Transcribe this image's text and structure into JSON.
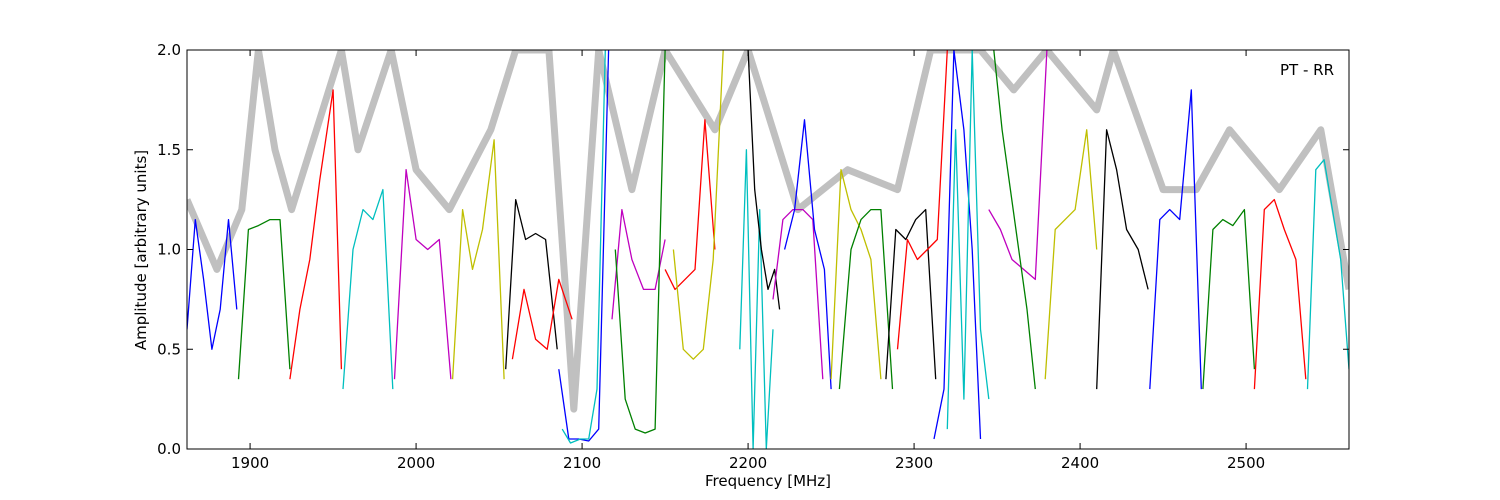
{
  "chart_data": {
    "type": "line",
    "annotation": "PT - RR",
    "xlabel": "Frequency [MHz]",
    "ylabel": "Amplitude [arbitrary units]",
    "xlim": [
      1862,
      2562
    ],
    "ylim": [
      0,
      2
    ],
    "xticks": [
      1900,
      2000,
      2100,
      2200,
      2300,
      2400,
      2500
    ],
    "yticks": [
      {
        "value": 0,
        "label": "0.0"
      },
      0.5,
      {
        "value": 1,
        "label": "1.0"
      },
      1.5,
      {
        "value": 2,
        "label": "2.0"
      }
    ],
    "series": [
      {
        "color": "#c0c0c0",
        "x": [
          1862,
          1880,
          1895,
          1905,
          1915,
          1925,
          1940,
          1955,
          1965,
          1985,
          2000,
          2020,
          2045,
          2060,
          2080,
          2095,
          2110,
          2130,
          2150,
          2180,
          2200,
          2230,
          2260,
          2290,
          2310,
          2340,
          2360,
          2380,
          2410,
          2420,
          2450,
          2470,
          2490,
          2520,
          2545,
          2562
        ],
        "values": [
          1.25,
          0.9,
          1.2,
          2.0,
          1.5,
          1.2,
          1.6,
          2.0,
          1.5,
          2.0,
          1.4,
          1.2,
          1.6,
          2.0,
          2.0,
          0.2,
          2.0,
          1.3,
          2.0,
          1.6,
          2.0,
          1.2,
          1.4,
          1.3,
          2.0,
          2.0,
          1.8,
          2.0,
          1.7,
          2.0,
          1.3,
          1.3,
          1.6,
          1.3,
          1.6,
          0.8
        ]
      },
      {
        "color": "#0000ff",
        "x": [
          1862,
          1867,
          1872,
          1877,
          1882,
          1887,
          1892
        ],
        "values": [
          0.6,
          1.15,
          0.85,
          0.5,
          0.7,
          1.15,
          0.7
        ]
      },
      {
        "color": "#008000",
        "x": [
          1893,
          1899,
          1905,
          1912,
          1918,
          1924
        ],
        "values": [
          0.35,
          1.1,
          1.12,
          1.15,
          1.15,
          0.4
        ]
      },
      {
        "color": "#ff0000",
        "x": [
          1924,
          1930,
          1936,
          1942,
          1950,
          1955
        ],
        "values": [
          0.35,
          0.7,
          0.95,
          1.35,
          1.8,
          0.4
        ]
      },
      {
        "color": "#00bfbf",
        "x": [
          1956,
          1962,
          1968,
          1974,
          1980,
          1986
        ],
        "values": [
          0.3,
          1.0,
          1.2,
          1.15,
          1.3,
          0.3
        ]
      },
      {
        "color": "#bf00bf",
        "x": [
          1987,
          1994,
          2000,
          2007,
          2014,
          2021
        ],
        "values": [
          0.35,
          1.4,
          1.05,
          1.0,
          1.05,
          0.35
        ]
      },
      {
        "color": "#bfbf00",
        "x": [
          2022,
          2028,
          2034,
          2040,
          2047,
          2053
        ],
        "values": [
          0.35,
          1.2,
          0.9,
          1.1,
          1.55,
          0.35
        ]
      },
      {
        "color": "#000000",
        "x": [
          2054,
          2060,
          2066,
          2072,
          2078,
          2085
        ],
        "values": [
          0.4,
          1.25,
          1.05,
          1.08,
          1.05,
          0.5
        ]
      },
      {
        "color": "#ff0000",
        "x": [
          2058,
          2065,
          2072,
          2079,
          2086,
          2094
        ],
        "values": [
          0.45,
          0.8,
          0.55,
          0.5,
          0.85,
          0.65
        ]
      },
      {
        "color": "#0000ff",
        "x": [
          2086,
          2092,
          2098,
          2104,
          2110,
          2116
        ],
        "values": [
          0.4,
          0.05,
          0.05,
          0.04,
          0.1,
          2.0
        ]
      },
      {
        "color": "#00bfbf",
        "x": [
          2088,
          2093,
          2099,
          2104,
          2109,
          2114
        ],
        "values": [
          0.1,
          0.03,
          0.05,
          0.05,
          0.3,
          2.0
        ]
      },
      {
        "color": "#bf00bf",
        "x": [
          2118,
          2124,
          2130,
          2137,
          2144,
          2150
        ],
        "values": [
          0.65,
          1.2,
          0.95,
          0.8,
          0.8,
          1.05
        ]
      },
      {
        "color": "#008000",
        "x": [
          2120,
          2126,
          2132,
          2138,
          2144,
          2150
        ],
        "values": [
          1.0,
          0.25,
          0.1,
          0.08,
          0.1,
          2.0
        ]
      },
      {
        "color": "#ff0000",
        "x": [
          2150,
          2156,
          2162,
          2168,
          2174,
          2180
        ],
        "values": [
          0.9,
          0.8,
          0.85,
          0.9,
          1.65,
          1.0
        ]
      },
      {
        "color": "#bfbf00",
        "x": [
          2155,
          2161,
          2167,
          2173,
          2179,
          2185
        ],
        "values": [
          1.0,
          0.5,
          0.45,
          0.5,
          0.95,
          2.0
        ]
      },
      {
        "color": "#00bfbf",
        "x": [
          2195,
          2199,
          2203,
          2207,
          2211,
          2215
        ],
        "values": [
          0.5,
          1.5,
          0.0,
          1.2,
          0.0,
          0.6
        ]
      },
      {
        "color": "#000000",
        "x": [
          2200,
          2204,
          2208,
          2212,
          2216,
          2219
        ],
        "values": [
          2.0,
          1.3,
          1.0,
          0.8,
          0.9,
          0.7
        ]
      },
      {
        "color": "#bf00bf",
        "x": [
          2215,
          2221,
          2227,
          2233,
          2239,
          2245
        ],
        "values": [
          0.75,
          1.15,
          1.2,
          1.2,
          1.15,
          0.35
        ]
      },
      {
        "color": "#0000ff",
        "x": [
          2222,
          2228,
          2234,
          2240,
          2246,
          2250
        ],
        "values": [
          1.0,
          1.2,
          1.65,
          1.1,
          0.9,
          0.3
        ]
      },
      {
        "color": "#bfbf00",
        "x": [
          2250,
          2256,
          2262,
          2268,
          2274,
          2280
        ],
        "values": [
          0.35,
          1.4,
          1.2,
          1.1,
          0.95,
          0.35
        ]
      },
      {
        "color": "#008000",
        "x": [
          2255,
          2262,
          2268,
          2274,
          2280,
          2287
        ],
        "values": [
          0.3,
          1.0,
          1.15,
          1.2,
          1.2,
          0.3
        ]
      },
      {
        "color": "#000000",
        "x": [
          2283,
          2289,
          2295,
          2301,
          2307,
          2313
        ],
        "values": [
          0.35,
          1.1,
          1.05,
          1.15,
          1.2,
          0.35
        ]
      },
      {
        "color": "#ff0000",
        "x": [
          2290,
          2296,
          2302,
          2308,
          2314,
          2320
        ],
        "values": [
          0.5,
          1.05,
          0.95,
          1.0,
          1.05,
          2.0
        ]
      },
      {
        "color": "#0000ff",
        "x": [
          2312,
          2318,
          2324,
          2330,
          2335,
          2340
        ],
        "values": [
          0.05,
          0.3,
          2.0,
          1.6,
          1.0,
          0.05
        ]
      },
      {
        "color": "#00bfbf",
        "x": [
          2320,
          2325,
          2330,
          2335,
          2340,
          2345
        ],
        "values": [
          0.1,
          1.6,
          0.25,
          2.0,
          0.6,
          0.25
        ]
      },
      {
        "color": "#bf00bf",
        "x": [
          2345,
          2352,
          2359,
          2366,
          2373,
          2380
        ],
        "values": [
          1.2,
          1.1,
          0.95,
          0.9,
          0.85,
          2.0
        ]
      },
      {
        "color": "#008000",
        "x": [
          2348,
          2353,
          2358,
          2363,
          2368,
          2373
        ],
        "values": [
          2.0,
          1.6,
          1.3,
          1.0,
          0.7,
          0.3
        ]
      },
      {
        "color": "#bfbf00",
        "x": [
          2379,
          2385,
          2391,
          2397,
          2404,
          2410
        ],
        "values": [
          0.35,
          1.1,
          1.15,
          1.2,
          1.6,
          1.0
        ]
      },
      {
        "color": "#000000",
        "x": [
          2410,
          2416,
          2422,
          2428,
          2435,
          2441
        ],
        "values": [
          0.3,
          1.6,
          1.4,
          1.1,
          1.0,
          0.8
        ]
      },
      {
        "color": "#0000ff",
        "x": [
          2442,
          2448,
          2454,
          2460,
          2467,
          2473
        ],
        "values": [
          0.3,
          1.15,
          1.2,
          1.15,
          1.8,
          0.3
        ]
      },
      {
        "color": "#008000",
        "x": [
          2474,
          2480,
          2486,
          2492,
          2499,
          2505
        ],
        "values": [
          0.3,
          1.1,
          1.15,
          1.12,
          1.2,
          0.4
        ]
      },
      {
        "color": "#ff0000",
        "x": [
          2505,
          2511,
          2517,
          2523,
          2530,
          2536
        ],
        "values": [
          0.3,
          1.2,
          1.25,
          1.1,
          0.95,
          0.35
        ]
      },
      {
        "color": "#00bfbf",
        "x": [
          2537,
          2542,
          2547,
          2552,
          2557,
          2562
        ],
        "values": [
          0.3,
          1.4,
          1.45,
          1.2,
          0.95,
          0.4
        ]
      }
    ]
  }
}
